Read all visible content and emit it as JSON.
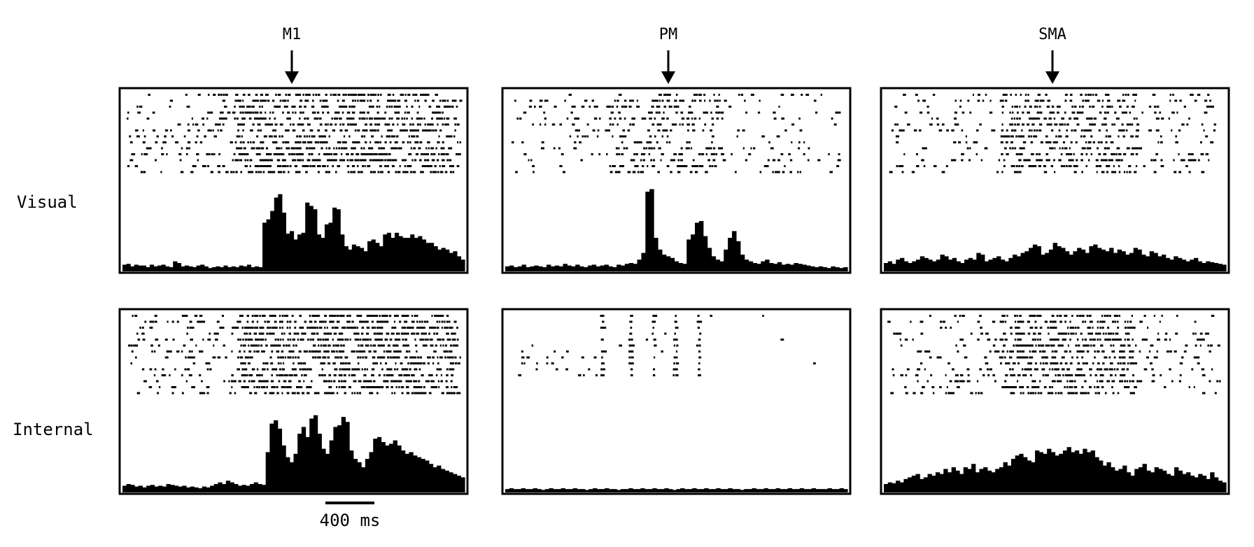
{
  "chart_data": {
    "type": "raster-psth",
    "title": "",
    "alignment_marker": "arrow",
    "scale_bar": {
      "label": "400 ms",
      "duration_ms": 400
    },
    "columns": [
      "M1",
      "PM",
      "SMA"
    ],
    "rows": [
      "Visual",
      "Internal"
    ],
    "time_range_ms": [
      0,
      1920
    ],
    "bin_ms": 40,
    "ylim": [
      0,
      100
    ],
    "panels": [
      {
        "area": "M1",
        "condition": "Visual",
        "trials": 14,
        "raster_density": 0.55,
        "burst_ranges_ms": [
          [
            620,
            1900
          ]
        ],
        "psth": [
          8,
          9,
          6,
          8,
          7,
          7,
          5,
          8,
          6,
          7,
          8,
          6,
          5,
          12,
          10,
          6,
          7,
          6,
          5,
          7,
          8,
          6,
          4,
          5,
          6,
          5,
          7,
          5,
          6,
          5,
          7,
          6,
          8,
          5,
          6,
          5,
          58,
          62,
          72,
          88,
          92,
          70,
          45,
          48,
          38,
          44,
          46,
          82,
          78,
          74,
          44,
          40,
          56,
          58,
          76,
          74,
          44,
          30,
          26,
          32,
          30,
          28,
          24,
          36,
          38,
          34,
          30,
          44,
          46,
          40,
          46,
          42,
          40,
          40,
          44,
          40,
          42,
          38,
          34,
          34,
          30,
          26,
          28,
          26,
          22,
          24,
          18,
          14
        ]
      },
      {
        "area": "PM",
        "condition": "Visual",
        "trials": 14,
        "raster_density": 0.35,
        "burst_ranges_ms": [
          [
            560,
            1220
          ]
        ],
        "psth": [
          6,
          7,
          5,
          6,
          8,
          5,
          6,
          7,
          6,
          5,
          8,
          6,
          7,
          6,
          9,
          7,
          6,
          8,
          6,
          5,
          7,
          8,
          6,
          7,
          8,
          6,
          5,
          8,
          7,
          9,
          10,
          9,
          14,
          22,
          95,
          98,
          40,
          26,
          20,
          18,
          16,
          12,
          10,
          9,
          38,
          44,
          58,
          60,
          42,
          28,
          18,
          14,
          12,
          26,
          40,
          48,
          36,
          20,
          14,
          12,
          10,
          9,
          12,
          14,
          10,
          9,
          11,
          8,
          9,
          8,
          10,
          9,
          8,
          7,
          6,
          5,
          6,
          5,
          4,
          6,
          5,
          4,
          5
        ]
      },
      {
        "area": "SMA",
        "condition": "Visual",
        "trials": 14,
        "raster_density": 0.45,
        "burst_ranges_ms": [
          [
            640,
            1420
          ]
        ],
        "psth": [
          10,
          12,
          9,
          14,
          16,
          12,
          10,
          12,
          14,
          18,
          16,
          14,
          12,
          14,
          20,
          18,
          14,
          16,
          12,
          10,
          14,
          16,
          14,
          22,
          20,
          12,
          14,
          16,
          18,
          14,
          12,
          16,
          20,
          18,
          22,
          24,
          28,
          32,
          30,
          20,
          22,
          26,
          34,
          30,
          28,
          24,
          20,
          24,
          28,
          26,
          22,
          30,
          32,
          28,
          26,
          24,
          28,
          22,
          26,
          24,
          20,
          22,
          28,
          26,
          20,
          18,
          24,
          22,
          18,
          20,
          16,
          14,
          18,
          16,
          14,
          12,
          14,
          16,
          12,
          10,
          12,
          11,
          10,
          9,
          8
        ]
      },
      {
        "area": "M1",
        "condition": "Internal",
        "trials": 14,
        "raster_density": 0.6,
        "burst_ranges_ms": [
          [
            640,
            1900
          ]
        ],
        "psth": [
          8,
          10,
          9,
          7,
          8,
          6,
          8,
          9,
          7,
          8,
          7,
          10,
          9,
          8,
          7,
          8,
          6,
          7,
          6,
          5,
          7,
          6,
          8,
          10,
          12,
          10,
          14,
          12,
          10,
          8,
          9,
          8,
          10,
          12,
          10,
          9,
          48,
          82,
          86,
          76,
          56,
          42,
          36,
          46,
          70,
          78,
          66,
          88,
          92,
          70,
          52,
          46,
          62,
          78,
          80,
          90,
          84,
          50,
          40,
          36,
          30,
          40,
          48,
          64,
          66,
          60,
          56,
          58,
          62,
          56,
          50,
          46,
          48,
          44,
          42,
          40,
          38,
          34,
          30,
          32,
          28,
          26,
          24,
          22,
          20,
          18
        ]
      },
      {
        "area": "PM",
        "condition": "Internal",
        "trials": 11,
        "raster_density": 0.06,
        "burst_ranges_ms": [
          [
            400,
            1300
          ]
        ],
        "psth": [
          4,
          5,
          4,
          4,
          5,
          4,
          4,
          5,
          4,
          3,
          4,
          5,
          4,
          4,
          5,
          4,
          4,
          5,
          4,
          4,
          3,
          4,
          5,
          4,
          4,
          5,
          4,
          4,
          3,
          4,
          4,
          5,
          4,
          4,
          5,
          4,
          4,
          5,
          4,
          4,
          5,
          4,
          3,
          4,
          5,
          4,
          4,
          5,
          4,
          4,
          5,
          4,
          4,
          5,
          4,
          4,
          5,
          4,
          4,
          3,
          4,
          4,
          5,
          4,
          4,
          5,
          4,
          4,
          5,
          4,
          4,
          5,
          4,
          4,
          5,
          4,
          4,
          5,
          4,
          4,
          4,
          5,
          4,
          4,
          5,
          4
        ]
      },
      {
        "area": "SMA",
        "condition": "Internal",
        "trials": 14,
        "raster_density": 0.5,
        "burst_ranges_ms": [
          [
            660,
            1400
          ]
        ],
        "psth": [
          10,
          12,
          11,
          14,
          12,
          16,
          18,
          20,
          22,
          16,
          18,
          22,
          20,
          24,
          22,
          28,
          24,
          30,
          26,
          22,
          30,
          28,
          34,
          24,
          28,
          30,
          26,
          24,
          28,
          30,
          36,
          32,
          40,
          44,
          46,
          42,
          38,
          36,
          50,
          48,
          46,
          52,
          48,
          44,
          46,
          50,
          54,
          48,
          50,
          46,
          52,
          48,
          50,
          42,
          38,
          32,
          36,
          30,
          26,
          28,
          32,
          24,
          20,
          28,
          30,
          34,
          26,
          24,
          30,
          28,
          26,
          22,
          20,
          30,
          26,
          22,
          24,
          20,
          18,
          22,
          20,
          16,
          24,
          18,
          14,
          12
        ]
      }
    ]
  }
}
